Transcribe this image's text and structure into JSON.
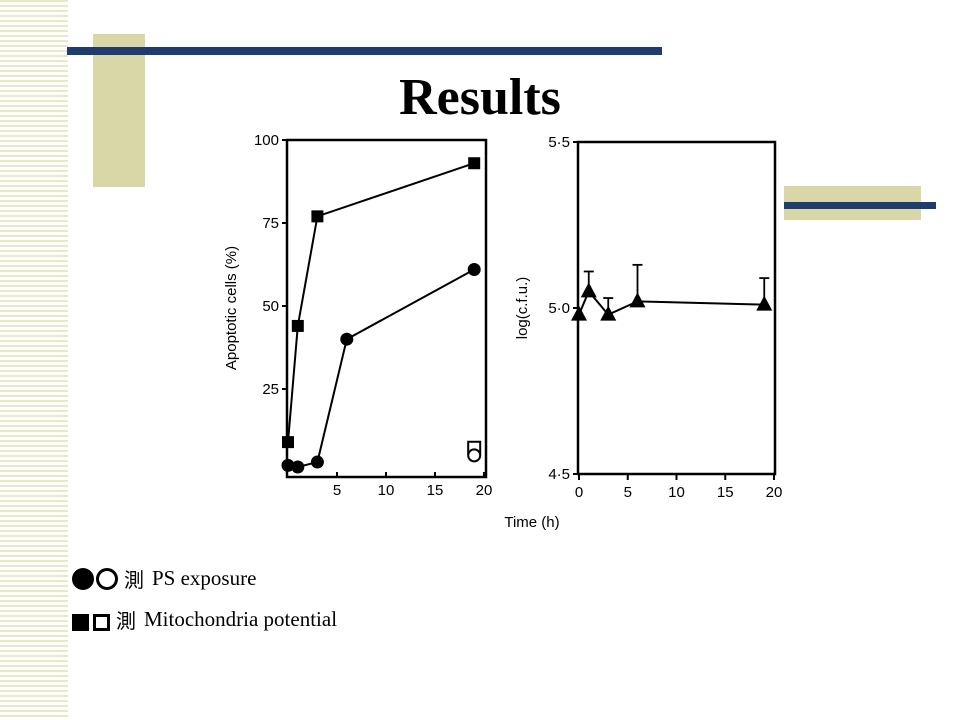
{
  "slide": {
    "title": "Results"
  },
  "legend": [
    {
      "bullet": "測",
      "symbols": [
        "filled-circle",
        "open-circle"
      ],
      "label": "PS exposure"
    },
    {
      "bullet": "測",
      "symbols": [
        "filled-square",
        "open-square"
      ],
      "label": "Mitochondria potential"
    }
  ],
  "colors": {
    "navy_bar": "#1f3c6e",
    "khaki_block": "#d9d6a8",
    "stripe": "#e7e9c8"
  },
  "chart_data": [
    {
      "type": "line",
      "ylabel": "Apoptotic cells (%)",
      "xlim": [
        0,
        20
      ],
      "ylim": [
        0,
        100
      ],
      "yticks": [
        25,
        50,
        75,
        100
      ],
      "xticks": [
        5,
        10,
        15,
        20
      ],
      "tick_labels_y": [
        "25",
        "50",
        "75",
        "100"
      ],
      "tick_labels_x": [
        "5",
        "10",
        "15",
        "20"
      ],
      "series": [
        {
          "marker": "filled-square",
          "x": [
            0,
            1,
            3,
            19
          ],
          "y": [
            9,
            44,
            77,
            93
          ]
        },
        {
          "marker": "filled-circle",
          "x": [
            0,
            1,
            3,
            6,
            19
          ],
          "y": [
            2,
            1.5,
            3,
            40,
            61
          ]
        },
        {
          "marker": "open-square",
          "x": [
            19
          ],
          "y": [
            7
          ]
        },
        {
          "marker": "open-circle",
          "x": [
            19
          ],
          "y": [
            5
          ]
        }
      ]
    },
    {
      "type": "line",
      "ylabel": "log(c.f.u.)",
      "xlabel": "Time (h)",
      "xlim": [
        0,
        20
      ],
      "ylim": [
        4.5,
        5.5
      ],
      "yticks": [
        4.5,
        5.0,
        5.5
      ],
      "xticks": [
        0,
        5,
        10,
        15,
        20
      ],
      "tick_labels_y": [
        "4·5",
        "5·0",
        "5·5"
      ],
      "tick_labels_x": [
        "0",
        "5",
        "10",
        "15",
        "20"
      ],
      "series": [
        {
          "marker": "filled-triangle",
          "x": [
            0,
            1,
            3,
            6,
            19
          ],
          "y": [
            4.98,
            5.05,
            4.98,
            5.02,
            5.01
          ],
          "error_upper": [
            null,
            5.11,
            5.03,
            5.13,
            5.09
          ]
        }
      ]
    }
  ]
}
